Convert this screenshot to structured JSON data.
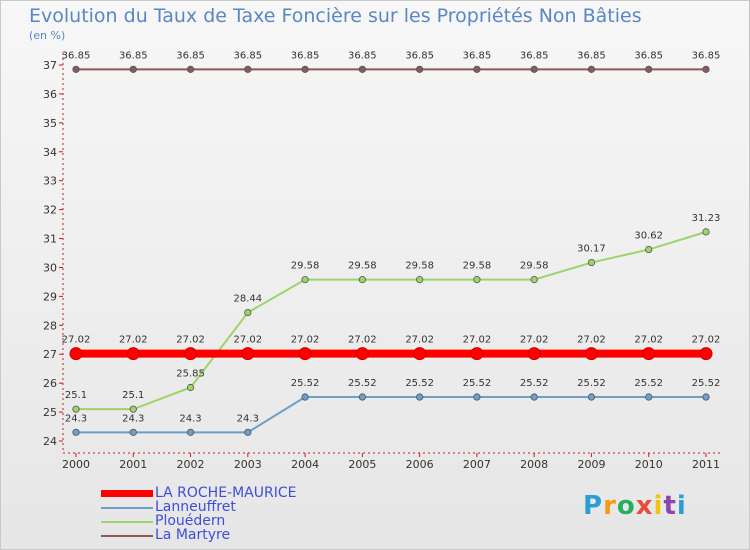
{
  "chart_data": {
    "type": "line",
    "title": "Evolution du Taux de Taxe Foncière sur les Propriétés Non Bâties",
    "unit_label": "(en %)",
    "xlabel": "",
    "ylabel": "",
    "categories": [
      "2000",
      "2001",
      "2002",
      "2003",
      "2004",
      "2005",
      "2006",
      "2007",
      "2008",
      "2009",
      "2010",
      "2011"
    ],
    "ylim": [
      24,
      37
    ],
    "yticks": [
      24,
      25,
      26,
      27,
      28,
      29,
      30,
      31,
      32,
      33,
      34,
      35,
      36,
      37
    ],
    "grid": false,
    "legend_position": "bottom-left",
    "series": [
      {
        "name": "LA ROCHE-MAURICE",
        "color": "#ff0000",
        "values": [
          27.02,
          27.02,
          27.02,
          27.02,
          27.02,
          27.02,
          27.02,
          27.02,
          27.02,
          27.02,
          27.02,
          27.02
        ],
        "labels": [
          "27.02",
          "27.02",
          "27.02",
          "27.02",
          "27.02",
          "27.02",
          "27.02",
          "27.02",
          "27.02",
          "27.02",
          "27.02",
          "27.02"
        ]
      },
      {
        "name": "Lanneuffret",
        "color": "#6e9fc9",
        "values": [
          24.3,
          24.3,
          24.3,
          24.3,
          25.52,
          25.52,
          25.52,
          25.52,
          25.52,
          25.52,
          25.52,
          25.52
        ],
        "labels": [
          "24.3",
          "24.3",
          "24.3",
          "24.3",
          "25.52",
          "25.52",
          "25.52",
          "25.52",
          "25.52",
          "25.52",
          "25.52",
          "25.52"
        ]
      },
      {
        "name": "Plouédern",
        "color": "#9cd46a",
        "values": [
          25.1,
          25.1,
          25.85,
          28.44,
          29.58,
          29.58,
          29.58,
          29.58,
          29.58,
          30.17,
          30.62,
          31.23
        ],
        "labels": [
          "25.1",
          "25.1",
          "25.85",
          "28.44",
          "29.58",
          "29.58",
          "29.58",
          "29.58",
          "29.58",
          "30.17",
          "30.62",
          "31.23"
        ]
      },
      {
        "name": "La Martyre",
        "color": "#8a5a5a",
        "values": [
          36.85,
          36.85,
          36.85,
          36.85,
          36.85,
          36.85,
          36.85,
          36.85,
          36.85,
          36.85,
          36.85,
          36.85
        ],
        "labels": [
          "36.85",
          "36.85",
          "36.85",
          "36.85",
          "36.85",
          "36.85",
          "36.85",
          "36.85",
          "36.85",
          "36.85",
          "36.85",
          "36.85"
        ]
      }
    ]
  },
  "brand": {
    "letters": [
      "P",
      "r",
      "o",
      "x",
      "i",
      "t",
      "i"
    ],
    "colors": [
      "#2a9fd6",
      "#f39c12",
      "#27ae60",
      "#e74c3c",
      "#f1c40f",
      "#8e44ad",
      "#2a9fd6"
    ]
  }
}
